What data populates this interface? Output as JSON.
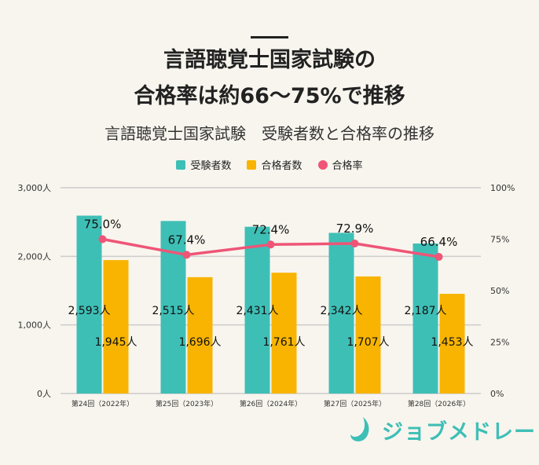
{
  "header": {
    "title_line1": "言語聴覚士国家試験の",
    "title_line2": "合格率は約66～75%で推移"
  },
  "chart_data": {
    "type": "bar",
    "title": "言語聴覚士国家試験　受験者数と合格率の推移",
    "categories": [
      "第24回（2022年）",
      "第25回（2023年）",
      "第26回（2024年）",
      "第27回（2025年）",
      "第28回（2026年）"
    ],
    "series": [
      {
        "name": "受験者数",
        "type": "bar",
        "axis": "left",
        "color": "#3ebfb6",
        "values": [
          2593,
          2515,
          2431,
          2342,
          2187
        ],
        "labels": [
          "2,593人",
          "2,515人",
          "2,431人",
          "2,342人",
          "2,187人"
        ]
      },
      {
        "name": "合格者数",
        "type": "bar",
        "axis": "left",
        "color": "#f8b400",
        "values": [
          1945,
          1696,
          1761,
          1707,
          1453
        ],
        "labels": [
          "1,945人",
          "1,696人",
          "1,761人",
          "1,707人",
          "1,453人"
        ]
      },
      {
        "name": "合格率",
        "type": "line",
        "axis": "right",
        "color": "#ee5577",
        "values": [
          75.0,
          67.4,
          72.4,
          72.9,
          66.4
        ],
        "labels": [
          "75.0%",
          "67.4%",
          "72.4%",
          "72.9%",
          "66.4%"
        ]
      }
    ],
    "y_left": {
      "ylim": [
        0,
        3000
      ],
      "ticks": [
        "0人",
        "1,000人",
        "2,000人",
        "3,000人"
      ],
      "tick_values": [
        0,
        1000,
        2000,
        3000
      ]
    },
    "y_right": {
      "ylim": [
        0,
        100
      ],
      "ticks": [
        "0%",
        "25%",
        "50%",
        "75%",
        "100%"
      ],
      "tick_values": [
        0,
        25,
        50,
        75,
        100
      ]
    },
    "grid": true,
    "legend_position": "top-center"
  },
  "logo": {
    "text": "ジョブメドレー"
  },
  "colors": {
    "teal": "#3ebfb6",
    "orange": "#f8b400",
    "pink": "#ee5577",
    "grid": "#cccccc",
    "background": "#f8f5ee"
  }
}
